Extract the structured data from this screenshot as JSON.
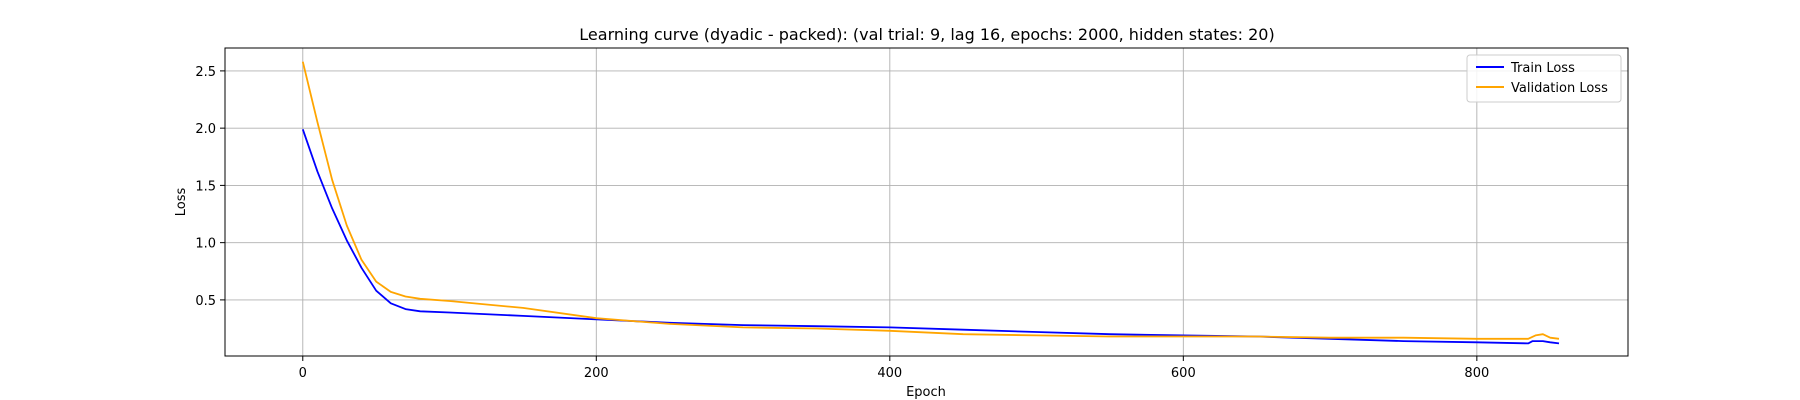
{
  "chart_data": {
    "type": "line",
    "title": "Learning curve (dyadic - packed): (val trial: 9, lag 16, epochs: 2000, hidden states: 20)",
    "xlabel": "Epoch",
    "ylabel": "Loss",
    "xlim": [
      -53,
      903
    ],
    "ylim": [
      0.01,
      2.7
    ],
    "xticks": [
      0,
      200,
      400,
      600,
      800
    ],
    "yticks": [
      0.5,
      1.0,
      1.5,
      2.0,
      2.5
    ],
    "grid": true,
    "legend_position": "top-right",
    "series": [
      {
        "name": "Train Loss",
        "color": "#0000ff",
        "x": [
          0,
          10,
          20,
          30,
          40,
          50,
          60,
          70,
          80,
          100,
          150,
          200,
          250,
          300,
          350,
          400,
          450,
          500,
          550,
          600,
          650,
          700,
          750,
          800,
          835,
          838,
          845,
          850,
          856
        ],
        "y": [
          1.99,
          1.62,
          1.3,
          1.02,
          0.78,
          0.58,
          0.47,
          0.42,
          0.4,
          0.39,
          0.36,
          0.33,
          0.3,
          0.28,
          0.27,
          0.26,
          0.24,
          0.22,
          0.2,
          0.19,
          0.18,
          0.16,
          0.14,
          0.13,
          0.12,
          0.14,
          0.14,
          0.13,
          0.12
        ]
      },
      {
        "name": "Validation Loss",
        "color": "#ffa500",
        "x": [
          0,
          10,
          20,
          30,
          40,
          50,
          60,
          70,
          80,
          100,
          150,
          200,
          220,
          250,
          300,
          350,
          400,
          450,
          500,
          550,
          600,
          650,
          700,
          750,
          800,
          835,
          840,
          845,
          850,
          856
        ],
        "y": [
          2.58,
          2.05,
          1.55,
          1.15,
          0.85,
          0.66,
          0.57,
          0.53,
          0.51,
          0.49,
          0.43,
          0.34,
          0.32,
          0.29,
          0.26,
          0.25,
          0.23,
          0.2,
          0.19,
          0.18,
          0.18,
          0.18,
          0.17,
          0.17,
          0.16,
          0.16,
          0.19,
          0.2,
          0.17,
          0.16
        ]
      }
    ]
  }
}
